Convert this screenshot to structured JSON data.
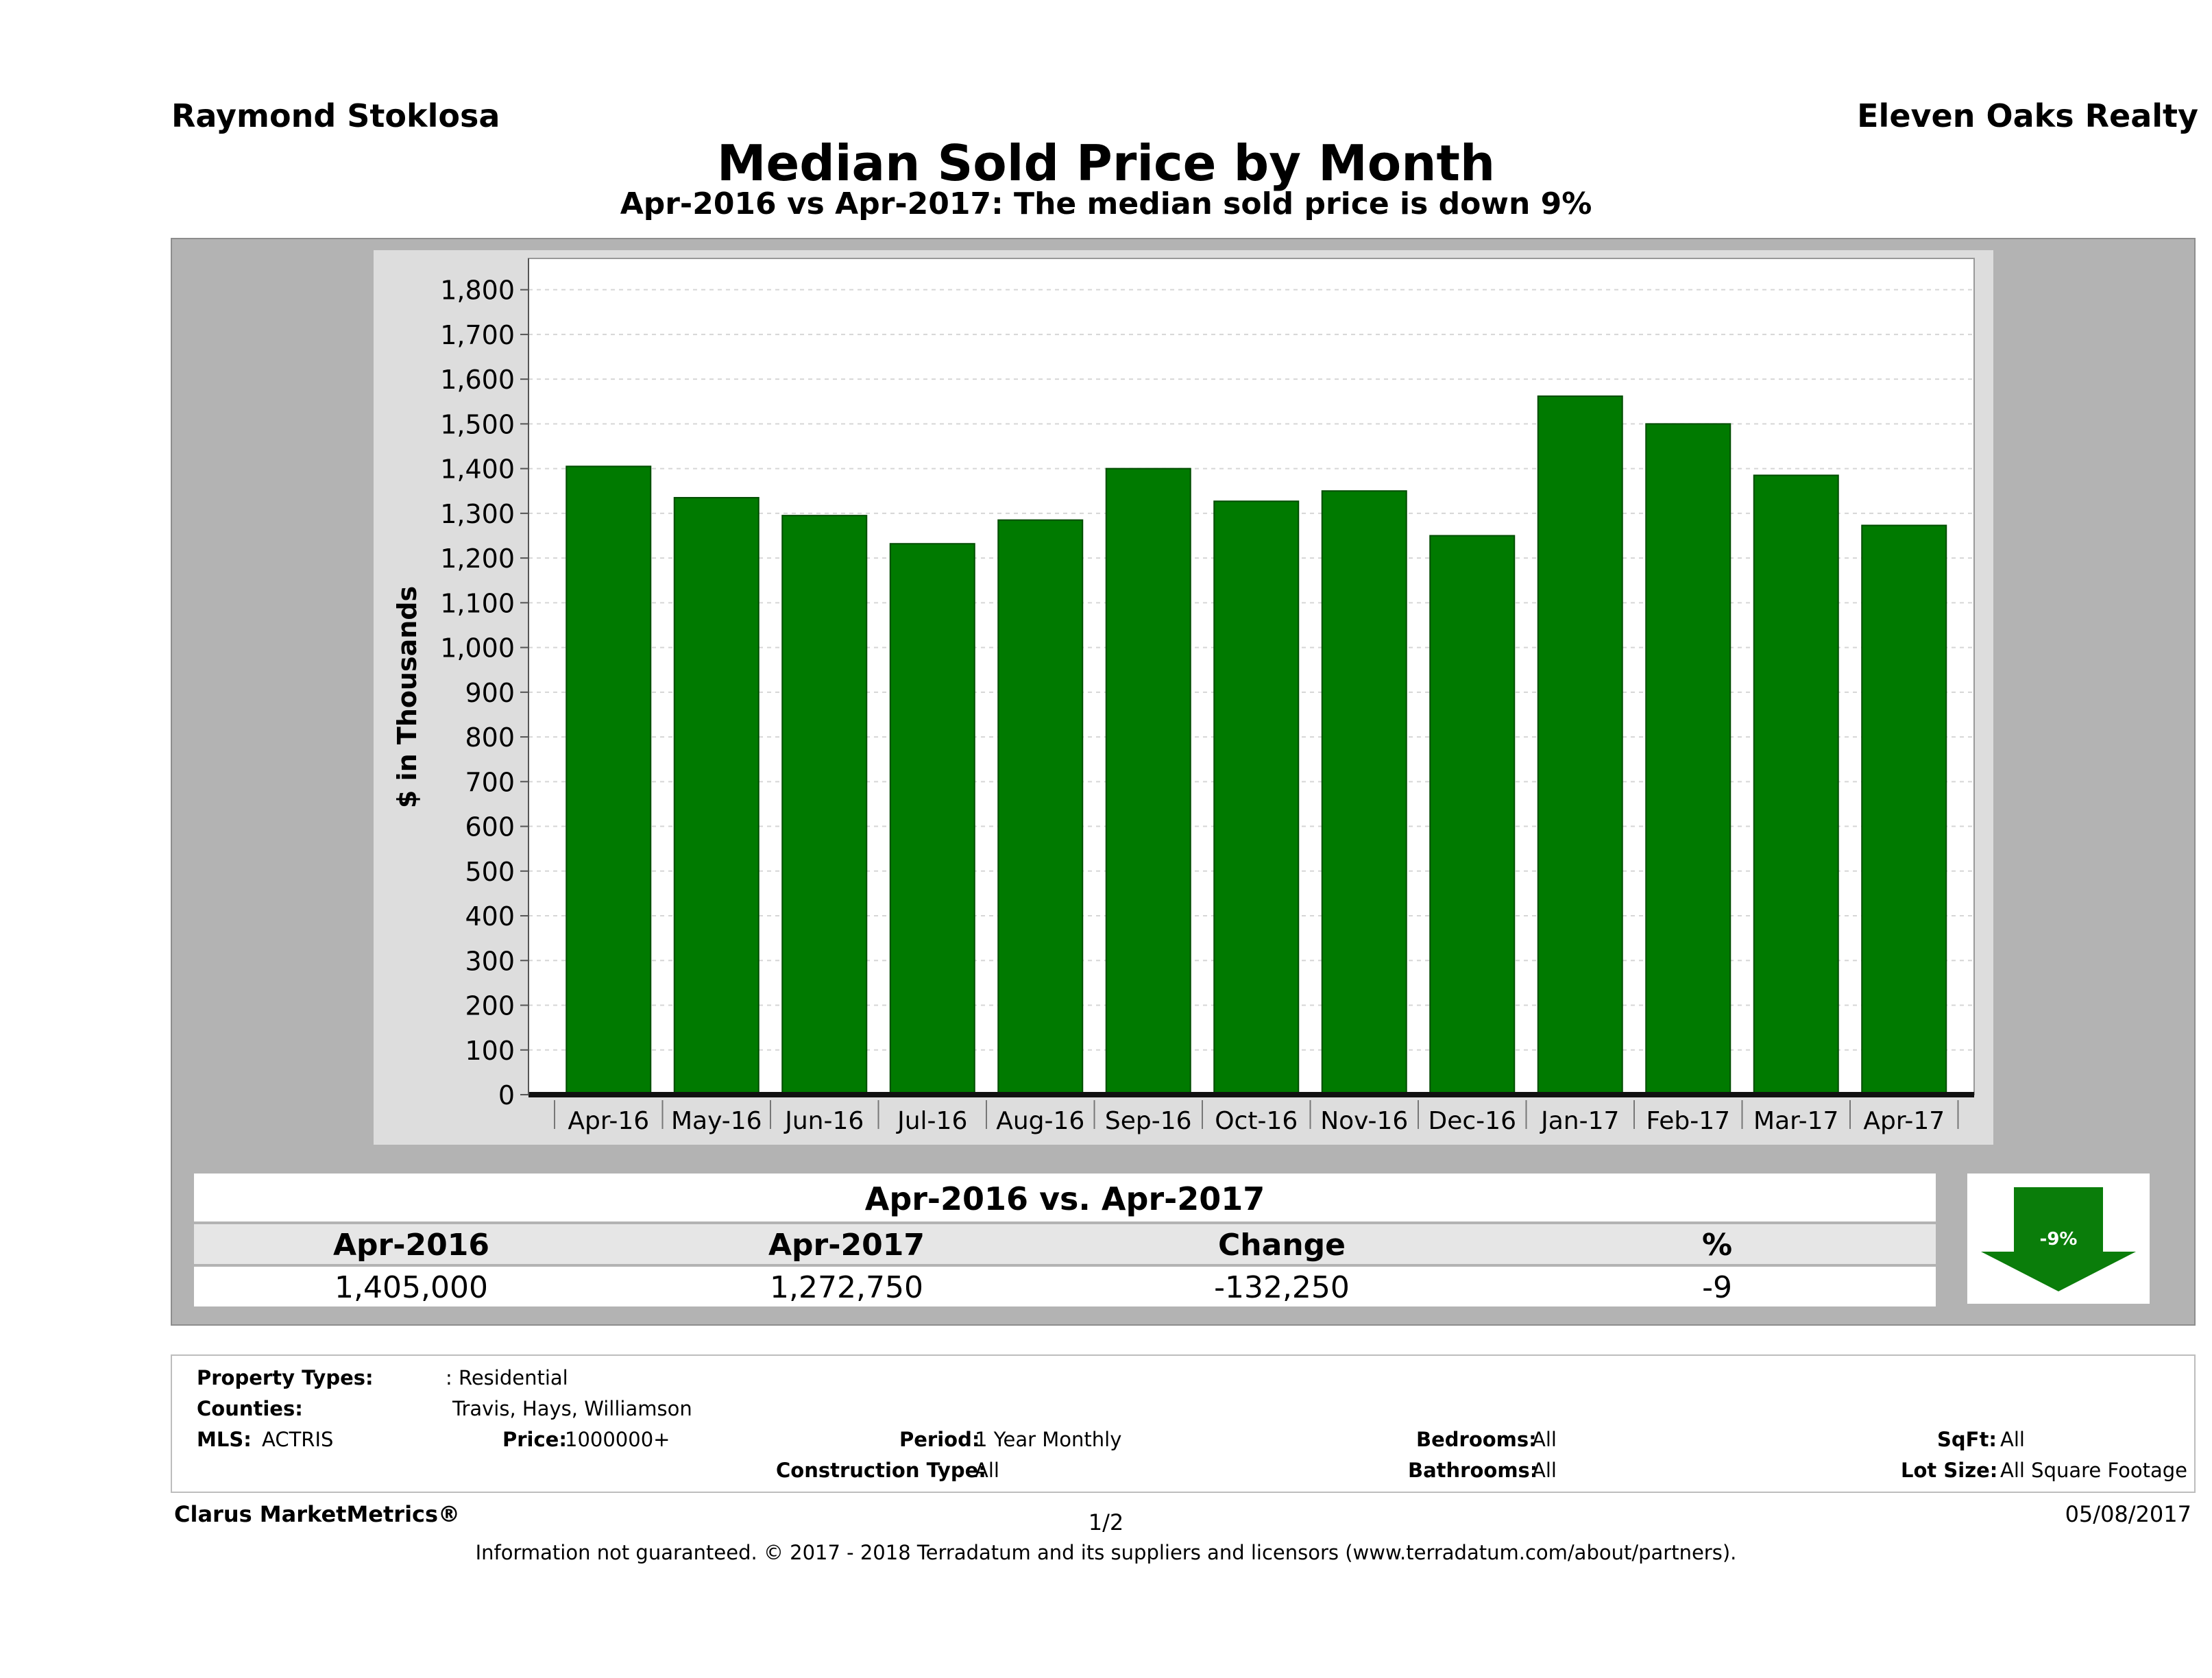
{
  "header": {
    "agent": "Raymond Stoklosa",
    "company": "Eleven Oaks Realty",
    "title": "Median Sold Price by Month",
    "subtitle": "Apr-2016 vs Apr-2017: The median sold price is down 9%"
  },
  "chart_data": {
    "type": "bar",
    "title": "Median Sold Price by Month",
    "subtitle": "Apr-2016 vs Apr-2017: The median sold price is down 9%",
    "xlabel": "",
    "ylabel": "$ in Thousands",
    "categories": [
      "Apr-16",
      "May-16",
      "Jun-16",
      "Jul-16",
      "Aug-16",
      "Sep-16",
      "Oct-16",
      "Nov-16",
      "Dec-16",
      "Jan-17",
      "Feb-17",
      "Mar-17",
      "Apr-17"
    ],
    "values": [
      1405,
      1335,
      1295,
      1232,
      1285,
      1400,
      1327,
      1350,
      1250,
      1562,
      1500,
      1385,
      1273
    ],
    "ylim": [
      0,
      1870
    ],
    "yticks": [
      0,
      100,
      200,
      300,
      400,
      500,
      600,
      700,
      800,
      900,
      1000,
      1100,
      1200,
      1300,
      1400,
      1500,
      1600,
      1700,
      1800
    ],
    "ytick_labels": [
      "0",
      "100",
      "200",
      "300",
      "400",
      "500",
      "600",
      "700",
      "800",
      "900",
      "1,000",
      "1,100",
      "1,200",
      "1,300",
      "1,400",
      "1,500",
      "1,600",
      "1,700",
      "1,800"
    ],
    "grid": true,
    "bar_color": "#007a00"
  },
  "summary": {
    "title": "Apr-2016 vs. Apr-2017",
    "headers": [
      "Apr-2016",
      "Apr-2017",
      "Change",
      "%"
    ],
    "values": [
      "1,405,000",
      "1,272,750",
      "-132,250",
      "-9"
    ],
    "badge": "-9%",
    "badge_color": "#0a7d0a"
  },
  "properties": {
    "property_types_label": "Property Types:",
    "property_types_value": ": Residential",
    "counties_label": "Counties:",
    "counties_value": "Travis, Hays, Williamson",
    "mls_label": "MLS:",
    "mls_value": "ACTRIS",
    "price_label": "Price:",
    "price_value": "1000000+",
    "period_label": "Period:",
    "period_value": "1 Year Monthly",
    "construction_label": "Construction Type:",
    "construction_value": "All",
    "bedrooms_label": "Bedrooms:",
    "bedrooms_value": "All",
    "bathrooms_label": "Bathrooms:",
    "bathrooms_value": "All",
    "sqft_label": "SqFt:",
    "sqft_value": "All",
    "lot_label": "Lot Size:",
    "lot_value": "All Square Footage"
  },
  "footer": {
    "brand": "Clarus MarketMetrics®",
    "page": "1/2",
    "date": "05/08/2017",
    "disclaimer": "Information not guaranteed. © 2017 - 2018 Terradatum and its suppliers and licensors (www.terradatum.com/about/partners)."
  }
}
